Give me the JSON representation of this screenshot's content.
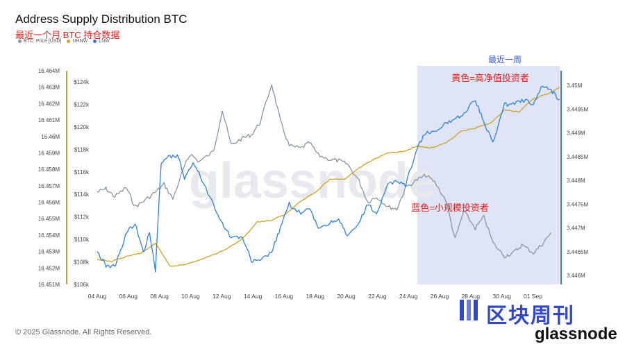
{
  "header": {
    "title": "Address Supply Distribution BTC",
    "subtitle": "最近一个月 BTC 持仓数据"
  },
  "legend": [
    {
      "label": "BTC: Price [USD]",
      "color": "#8a959d"
    },
    {
      "label": "UHNW",
      "color": "#c9a227"
    },
    {
      "label": "LNW",
      "color": "#2f7fd6"
    }
  ],
  "annotations": {
    "recent_week": "最近一周",
    "yellow_note": "黄色=高净值投资者",
    "blue_note": "蓝色=小规模投资者"
  },
  "watermark": "glassnode",
  "footer": "© 2025 Glassnode. All Rights Reserved.",
  "brand": {
    "name_cn": "区块周刊",
    "logo_text": "glassnode"
  },
  "colors": {
    "price": "#8a959d",
    "uhnw": "#c9a227",
    "lnw": "#2f7fd6",
    "highlight": "#dfe4f7",
    "left_axis_bar": "#c9a227",
    "right_axis_bar": "#2f7fd6",
    "annotation_red": "#e02020",
    "annotation_blue": "#3355cc"
  },
  "chart_data": {
    "type": "line",
    "x_ticks": [
      "04 Aug",
      "06 Aug",
      "08 Aug",
      "10 Aug",
      "12 Aug",
      "14 Aug",
      "16 Aug",
      "18 Aug",
      "20 Aug",
      "22 Aug",
      "24 Aug",
      "26 Aug",
      "28 Aug",
      "30 Aug",
      "01 Sep"
    ],
    "y_left_outer": {
      "series": "UHNW",
      "ticks": [
        "16.464M",
        "16.463M",
        "16.462M",
        "16.461M",
        "16.46M",
        "16.459M",
        "16.458M",
        "16.457M",
        "16.456M",
        "16.455M",
        "16.454M",
        "16.453M",
        "16.452M",
        "16.451M"
      ],
      "range": [
        16.451,
        16.464
      ]
    },
    "y_left_inner": {
      "series": "BTC: Price [USD]",
      "ticks": [
        "$124k",
        "$122k",
        "$120k",
        "$118k",
        "$116k",
        "$114k",
        "$112k",
        "$110k",
        "$108k",
        "$106k"
      ],
      "range": [
        106,
        124.5
      ]
    },
    "y_right": {
      "series": "LNW",
      "ticks": [
        "3.45M",
        "3.4495M",
        "3.449M",
        "3.4485M",
        "3.448M",
        "3.4475M",
        "3.447M",
        "3.4465M",
        "3.446M"
      ],
      "range": [
        3.4458,
        3.4502
      ]
    },
    "highlight_range": [
      "26 Aug",
      "02 Sep"
    ],
    "series": [
      {
        "name": "BTC: Price [USD]",
        "unit": "k USD",
        "x": [
          0,
          0.3,
          0.6,
          1.0,
          1.3,
          1.6,
          2.0,
          2.3,
          2.6,
          3.0,
          3.2,
          3.5,
          4.0,
          4.3,
          4.6,
          5.0,
          5.3,
          5.6,
          6.0,
          6.3,
          6.6,
          7.0,
          7.3,
          7.6,
          8.0,
          8.3,
          8.6,
          9.0,
          9.3,
          9.6,
          10.0,
          10.3,
          10.6,
          11.0,
          11.3,
          11.6,
          12.0,
          12.3,
          12.6,
          13.0,
          13.3,
          13.6,
          14.0,
          14.3,
          14.6,
          15.0,
          15.3,
          15.6
        ],
        "y": [
          114.2,
          114.5,
          113.8,
          114.6,
          112.9,
          113.4,
          114.2,
          114.9,
          113.6,
          116.5,
          117.6,
          116.9,
          117.8,
          121.5,
          118.4,
          119.0,
          119.3,
          120.4,
          123.8,
          120.5,
          118.3,
          118.1,
          118.6,
          117.5,
          117.1,
          117.0,
          116.7,
          115.2,
          113.3,
          113.8,
          112.9,
          112.7,
          114.6,
          115.3,
          115.7,
          115.1,
          113.4,
          110.0,
          112.5,
          111.0,
          112.0,
          109.7,
          108.5,
          108.8,
          109.5,
          108.8,
          109.6,
          110.6
        ]
      },
      {
        "name": "UHNW",
        "unit": "M BTC",
        "x": [
          0,
          0.5,
          1.0,
          1.5,
          2.0,
          2.5,
          3.0,
          3.5,
          4.0,
          4.5,
          5.0,
          5.5,
          6.0,
          6.5,
          7.0,
          7.5,
          8.0,
          8.5,
          9.0,
          9.5,
          10.0,
          10.5,
          11.0,
          11.5,
          12.0,
          12.5,
          13.0,
          13.5,
          14.0,
          14.5,
          15.0,
          15.5,
          15.9
        ],
        "y": [
          16.4525,
          16.4524,
          16.4527,
          16.4529,
          16.4535,
          16.4521,
          16.4522,
          16.4525,
          16.4528,
          16.4532,
          16.4538,
          16.4548,
          16.4549,
          16.4553,
          16.4561,
          16.4566,
          16.4574,
          16.4574,
          16.4581,
          16.4586,
          16.459,
          16.4591,
          16.4594,
          16.4593,
          16.4596,
          16.4603,
          16.4605,
          16.4608,
          16.4616,
          16.4615,
          16.4623,
          16.4626,
          16.463
        ]
      },
      {
        "name": "LNW",
        "unit": "M BTC",
        "x": [
          0,
          0.3,
          0.6,
          0.8,
          1.0,
          1.3,
          1.6,
          1.8,
          2.0,
          2.2,
          2.5,
          2.8,
          3.0,
          3.3,
          3.6,
          4.0,
          4.3,
          4.6,
          5.0,
          5.3,
          5.6,
          6.0,
          6.3,
          6.6,
          7.0,
          7.3,
          7.6,
          8.0,
          8.3,
          8.6,
          9.0,
          9.3,
          9.6,
          10.0,
          10.3,
          10.6,
          11.0,
          11.3,
          11.6,
          12.0,
          12.3,
          12.6,
          13.0,
          13.3,
          13.6,
          14.0,
          14.3,
          14.6,
          15.0,
          15.3,
          15.6,
          15.9
        ],
        "y": [
          3.4465,
          3.4462,
          3.4462,
          3.4465,
          3.4469,
          3.4471,
          3.4465,
          3.4469,
          3.4461,
          3.4484,
          3.4485,
          3.4485,
          3.448,
          3.4484,
          3.448,
          3.4475,
          3.4471,
          3.4468,
          3.4468,
          3.4463,
          3.4463,
          3.4465,
          3.447,
          3.4475,
          3.4473,
          3.4474,
          3.447,
          3.4471,
          3.4472,
          3.4468,
          3.4471,
          3.4475,
          3.4473,
          3.4479,
          3.448,
          3.4479,
          3.4487,
          3.449,
          3.449,
          3.4492,
          3.4493,
          3.4494,
          3.4497,
          3.4492,
          3.4488,
          3.4496,
          3.4496,
          3.4497,
          3.4496,
          3.45,
          3.4499,
          3.4497
        ]
      }
    ]
  }
}
